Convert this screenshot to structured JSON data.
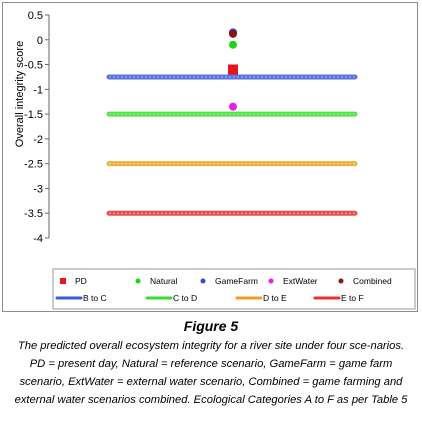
{
  "chart_data": {
    "type": "scatter",
    "ylabel": "Overall integrity score",
    "ylim": [
      -4,
      0.5
    ],
    "yticks": [
      "0.5",
      "0",
      "-0.5",
      "-1",
      "-1.5",
      "-2",
      "-2.5",
      "-3",
      "-3.5",
      "-4"
    ],
    "gridlines": false,
    "legend_position": "bottom",
    "points": [
      {
        "name": "PD",
        "y": -0.6,
        "color": "#e8141b",
        "marker": "square"
      },
      {
        "name": "Natural",
        "y": -0.1,
        "color": "#1bd41b",
        "marker": "circle"
      },
      {
        "name": "GameFarm",
        "y": 0.15,
        "color": "#3a45c8",
        "marker": "circle"
      },
      {
        "name": "ExtWater",
        "y": -1.35,
        "color": "#e81ee0",
        "marker": "circle"
      },
      {
        "name": "Combined",
        "y": 0.12,
        "color": "#8a1212",
        "marker": "circle"
      }
    ],
    "lines": [
      {
        "name": "B to C",
        "y": -0.75,
        "color": "#3a5bd8"
      },
      {
        "name": "C to D",
        "y": -1.5,
        "color": "#3ade2a"
      },
      {
        "name": "D to E",
        "y": -2.5,
        "color": "#f0a020"
      },
      {
        "name": "E to F",
        "y": -3.5,
        "color": "#e83030"
      }
    ]
  },
  "caption": {
    "title": "Figure 5",
    "text": "The predicted overall ecosystem integrity for a river site under four sce-narios. PD = present day, Natural = reference scenario, GameFarm = game farm scenario, ExtWater = external water scenario, Combined = game farming and external water scenarios combined. Ecological Categories A to F as per Table 5"
  }
}
